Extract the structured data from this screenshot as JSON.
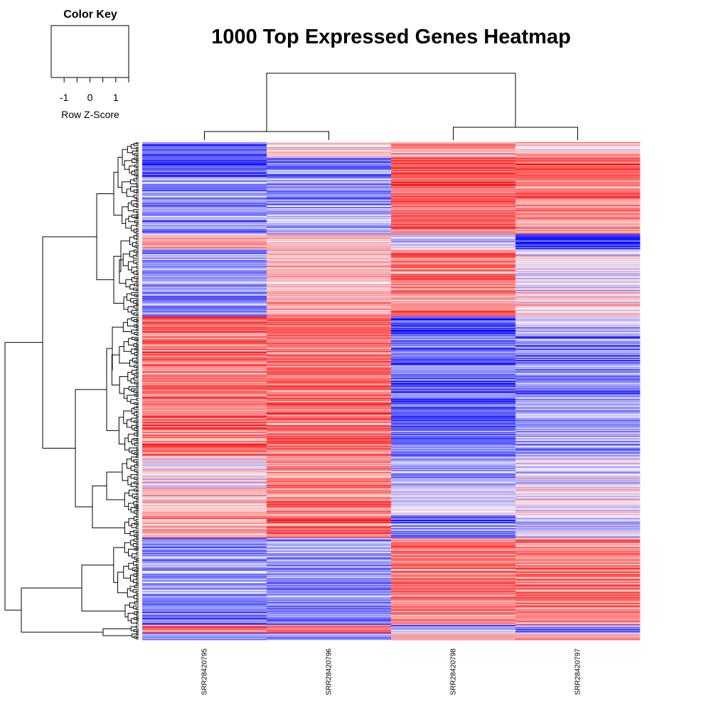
{
  "chart_data": {
    "type": "heatmap",
    "title": "1000 Top Expressed Genes Heatmap",
    "columns": [
      "SRR28420795",
      "SRR28420796",
      "SRR28420798",
      "SRR28420797"
    ],
    "n_rows": 1000,
    "color_key": {
      "title": "Color Key",
      "xlabel": "Row Z-Score",
      "ticks": [
        -1,
        0,
        1
      ],
      "tick_labels": [
        "-1",
        "0",
        "1"
      ],
      "range": [
        -1.5,
        1.5
      ],
      "low_color": "#0000ff",
      "mid_color": "#ffffff",
      "high_color": "#ff0000"
    },
    "row_clusters": [
      {
        "rows": 30,
        "z": [
          -0.9,
          0.2,
          0.5,
          0.3
        ]
      },
      {
        "rows": 40,
        "z": [
          -1.0,
          -0.8,
          1.0,
          0.9
        ]
      },
      {
        "rows": 45,
        "z": [
          -0.7,
          -0.6,
          1.0,
          0.8
        ]
      },
      {
        "rows": 70,
        "z": [
          -0.7,
          -0.4,
          0.8,
          0.6
        ]
      },
      {
        "rows": 30,
        "z": [
          0.6,
          0.3,
          -0.2,
          -1.1
        ]
      },
      {
        "rows": 85,
        "z": [
          -0.6,
          0.4,
          0.8,
          -0.1
        ]
      },
      {
        "rows": 50,
        "z": [
          -0.8,
          0.5,
          0.7,
          0.3
        ]
      },
      {
        "rows": 40,
        "z": [
          0.9,
          1.0,
          -1.1,
          -0.3
        ]
      },
      {
        "rows": 140,
        "z": [
          0.8,
          0.8,
          -0.8,
          -0.7
        ]
      },
      {
        "rows": 100,
        "z": [
          0.8,
          0.8,
          -1.0,
          -0.5
        ]
      },
      {
        "rows": 65,
        "z": [
          0.0,
          0.6,
          -0.6,
          -0.2
        ]
      },
      {
        "rows": 55,
        "z": [
          0.4,
          0.7,
          -0.2,
          0.1
        ]
      },
      {
        "rows": 45,
        "z": [
          0.6,
          0.8,
          -0.7,
          -0.3
        ]
      },
      {
        "rows": 125,
        "z": [
          -0.6,
          -0.6,
          0.8,
          0.7
        ]
      },
      {
        "rows": 50,
        "z": [
          -0.7,
          -0.7,
          0.8,
          0.7
        ]
      },
      {
        "rows": 16,
        "z": [
          0.8,
          0.9,
          -0.7,
          -0.7
        ]
      },
      {
        "rows": 14,
        "z": [
          -0.7,
          -0.6,
          0.5,
          0.4
        ]
      }
    ]
  }
}
